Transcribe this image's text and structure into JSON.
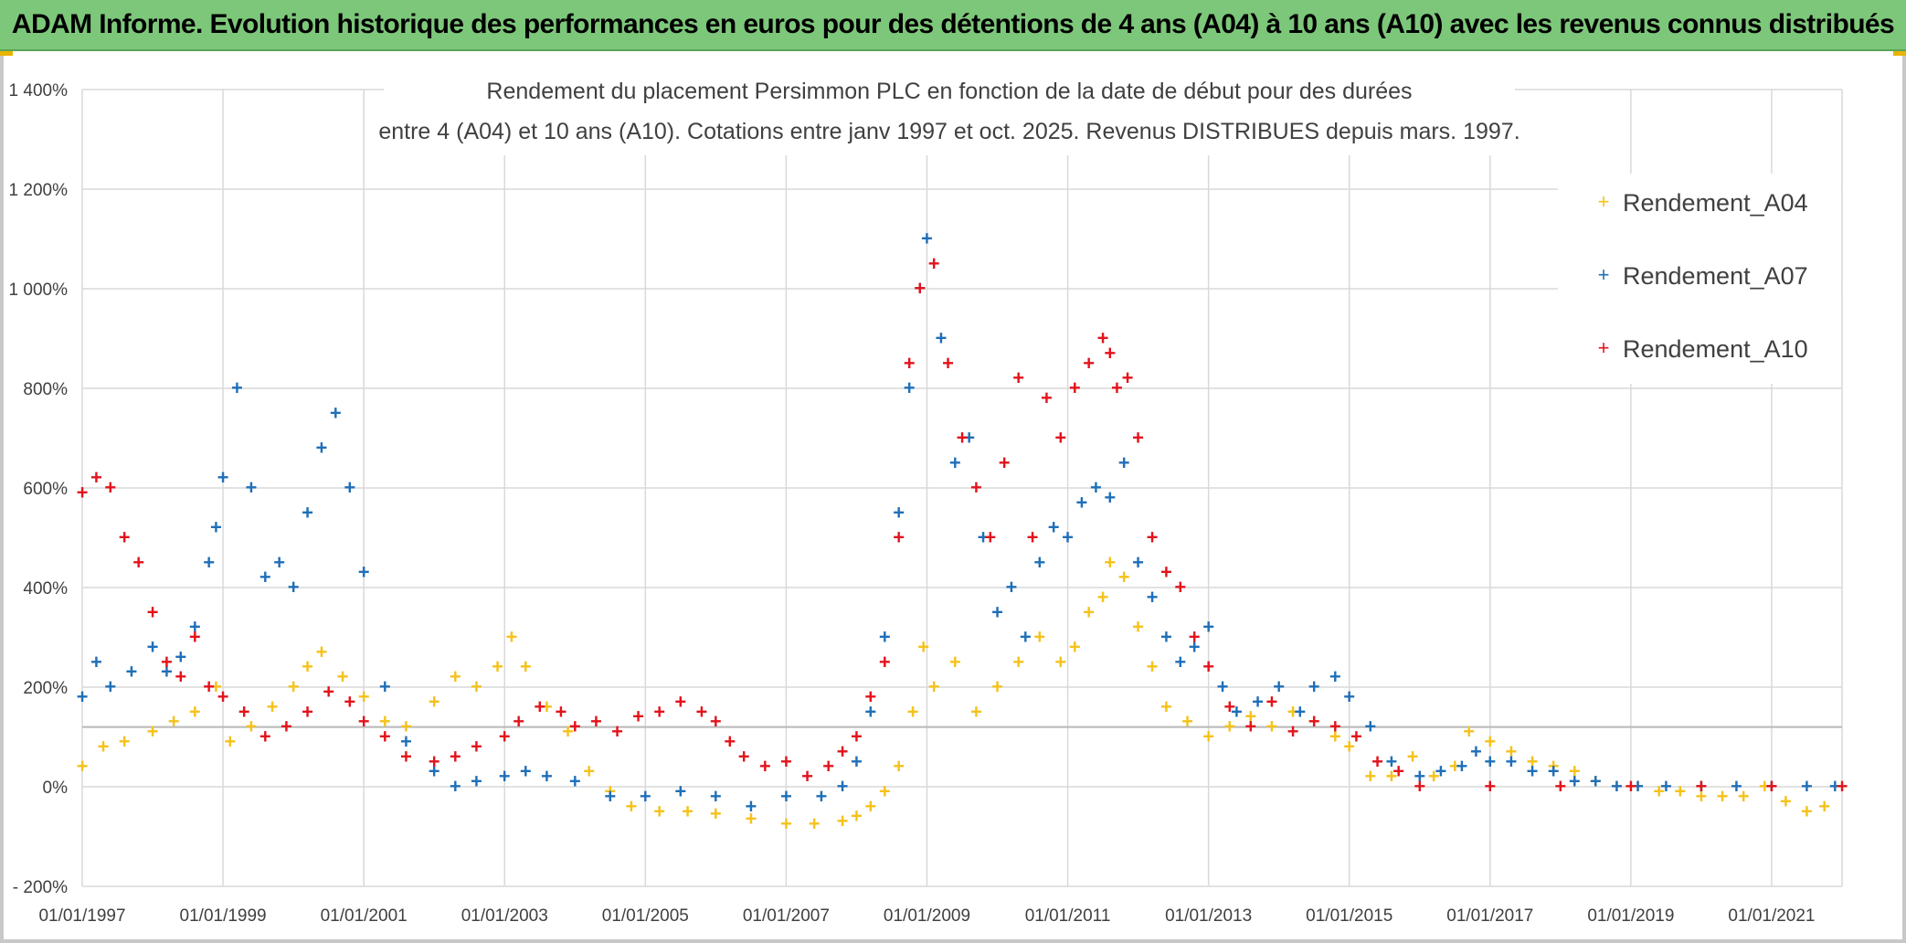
{
  "banner": {
    "title": "ADAM Informe. Evolution historique des performances en euros pour des détentions de 4 ans (A04) à 10 ans (A10) avec les revenus connus distribués"
  },
  "colors": {
    "banner_bg": "#7dc77a",
    "A04": "#f5c21b",
    "A07": "#1f6fb8",
    "A10": "#e3131b",
    "grid": "#d9d9d9"
  },
  "chart_data": {
    "type": "scatter",
    "title_line1": "Rendement du placement Persimmon PLC en fonction de la date de début pour des durées",
    "title_line2": "entre 4 (A04) et 10 ans (A10). Cotations entre janv 1997 et oct. 2025. Revenus DISTRIBUES depuis mars. 1997.",
    "xlabel": "",
    "ylabel": "",
    "x_unit": "year",
    "xlim": [
      1997.0,
      2022.0
    ],
    "ylim": [
      -200,
      1400
    ],
    "y_ticks": [
      -200,
      0,
      200,
      400,
      600,
      800,
      1000,
      1200,
      1400
    ],
    "y_tick_labels": [
      "- 200%",
      "0%",
      "200%",
      "400%",
      "600%",
      "800%",
      "1 000%",
      "1 200%",
      "1 400%"
    ],
    "x_ticks": [
      1997,
      1999,
      2001,
      2003,
      2005,
      2007,
      2009,
      2011,
      2013,
      2015,
      2017,
      2019,
      2021
    ],
    "x_tick_labels": [
      "01/01/1997",
      "01/01/1999",
      "01/01/2001",
      "01/01/2003",
      "01/01/2005",
      "01/01/2007",
      "01/01/2009",
      "01/01/2011",
      "01/01/2013",
      "01/01/2015",
      "01/01/2017",
      "01/01/2019",
      "01/01/2021"
    ],
    "reference_line_y": 120,
    "legend_position": "top-right",
    "marker": "+",
    "series": [
      {
        "name": "Rendement_A04",
        "color": "#f5c21b",
        "x": [
          1997.0,
          1997.3,
          1997.6,
          1998.0,
          1998.3,
          1998.6,
          1998.9,
          1999.1,
          1999.4,
          1999.7,
          2000.0,
          2000.2,
          2000.4,
          2000.7,
          2001.0,
          2001.3,
          2001.6,
          2002.0,
          2002.3,
          2002.6,
          2002.9,
          2003.1,
          2003.3,
          2003.6,
          2003.9,
          2004.2,
          2004.5,
          2004.8,
          2005.2,
          2005.6,
          2006.0,
          2006.5,
          2007.0,
          2007.4,
          2007.8,
          2008.0,
          2008.2,
          2008.4,
          2008.6,
          2008.8,
          2008.95,
          2009.1,
          2009.4,
          2009.7,
          2010.0,
          2010.3,
          2010.6,
          2010.9,
          2011.1,
          2011.3,
          2011.5,
          2011.6,
          2011.8,
          2012.0,
          2012.2,
          2012.4,
          2012.7,
          2013.0,
          2013.3,
          2013.6,
          2013.9,
          2014.2,
          2014.5,
          2014.8,
          2015.0,
          2015.3,
          2015.6,
          2015.9,
          2016.2,
          2016.5,
          2016.7,
          2017.0,
          2017.3,
          2017.6,
          2017.9,
          2018.2,
          2018.5,
          2018.8,
          2019.1,
          2019.4,
          2019.7,
          2020.0,
          2020.3,
          2020.6,
          2020.9,
          2021.2,
          2021.5,
          2021.75
        ],
        "y": [
          40,
          80,
          90,
          110,
          130,
          150,
          200,
          90,
          120,
          160,
          200,
          240,
          270,
          220,
          180,
          130,
          120,
          170,
          220,
          200,
          240,
          300,
          240,
          160,
          110,
          30,
          -10,
          -40,
          -50,
          -50,
          -55,
          -65,
          -75,
          -75,
          -70,
          -60,
          -40,
          -10,
          40,
          150,
          280,
          200,
          250,
          150,
          200,
          250,
          300,
          250,
          280,
          350,
          380,
          450,
          420,
          320,
          240,
          160,
          130,
          100,
          120,
          140,
          120,
          150,
          130,
          100,
          80,
          20,
          20,
          60,
          20,
          40,
          110,
          90,
          70,
          50,
          40,
          30,
          10,
          0,
          0,
          -10,
          -10,
          -20,
          -20,
          -20,
          0,
          -30,
          -50,
          -40
        ]
      },
      {
        "name": "Rendement_A07",
        "color": "#1f6fb8",
        "x": [
          1997.0,
          1997.2,
          1997.4,
          1997.7,
          1998.0,
          1998.2,
          1998.4,
          1998.6,
          1998.8,
          1998.9,
          1999.0,
          1999.2,
          1999.4,
          1999.6,
          1999.8,
          2000.0,
          2000.2,
          2000.4,
          2000.6,
          2000.8,
          2001.0,
          2001.3,
          2001.6,
          2002.0,
          2002.3,
          2002.6,
          2003.0,
          2003.3,
          2003.6,
          2004.0,
          2004.5,
          2005.0,
          2005.5,
          2006.0,
          2006.5,
          2007.0,
          2007.5,
          2007.8,
          2008.0,
          2008.2,
          2008.4,
          2008.6,
          2008.75,
          2008.9,
          2009.0,
          2009.2,
          2009.4,
          2009.6,
          2009.8,
          2010.0,
          2010.2,
          2010.4,
          2010.6,
          2010.8,
          2011.0,
          2011.2,
          2011.4,
          2011.6,
          2011.8,
          2012.0,
          2012.2,
          2012.4,
          2012.6,
          2012.8,
          2013.0,
          2013.2,
          2013.4,
          2013.7,
          2014.0,
          2014.3,
          2014.5,
          2014.8,
          2015.0,
          2015.3,
          2015.6,
          2016.0,
          2016.3,
          2016.6,
          2016.8,
          2017.0,
          2017.3,
          2017.6,
          2017.9,
          2018.2,
          2018.5,
          2018.8,
          2019.1,
          2019.5,
          2020.0,
          2020.5,
          2021.0,
          2021.5,
          2021.9
        ],
        "y": [
          180,
          250,
          200,
          230,
          280,
          230,
          260,
          320,
          450,
          520,
          620,
          800,
          600,
          420,
          450,
          400,
          550,
          680,
          750,
          600,
          430,
          200,
          90,
          30,
          0,
          10,
          20,
          30,
          20,
          10,
          -20,
          -20,
          -10,
          -20,
          -40,
          -20,
          -20,
          0,
          50,
          150,
          300,
          550,
          800,
          1000,
          1100,
          900,
          650,
          700,
          500,
          350,
          400,
          300,
          450,
          520,
          500,
          570,
          600,
          580,
          650,
          450,
          380,
          300,
          250,
          280,
          320,
          200,
          150,
          170,
          200,
          150,
          200,
          220,
          180,
          120,
          50,
          20,
          30,
          40,
          70,
          50,
          50,
          30,
          30,
          10,
          10,
          0,
          0,
          0,
          0,
          0,
          0,
          0,
          0
        ]
      },
      {
        "name": "Rendement_A10",
        "color": "#e3131b",
        "x": [
          1997.0,
          1997.2,
          1997.4,
          1997.6,
          1997.8,
          1998.0,
          1998.2,
          1998.4,
          1998.6,
          1998.8,
          1999.0,
          1999.3,
          1999.6,
          1999.9,
          2000.2,
          2000.5,
          2000.8,
          2001.0,
          2001.3,
          2001.6,
          2002.0,
          2002.3,
          2002.6,
          2003.0,
          2003.2,
          2003.5,
          2003.8,
          2004.0,
          2004.3,
          2004.6,
          2004.9,
          2005.2,
          2005.5,
          2005.8,
          2006.0,
          2006.2,
          2006.4,
          2006.7,
          2007.0,
          2007.3,
          2007.6,
          2007.8,
          2008.0,
          2008.2,
          2008.4,
          2008.6,
          2008.75,
          2008.9,
          2009.1,
          2009.3,
          2009.5,
          2009.7,
          2009.9,
          2010.1,
          2010.3,
          2010.5,
          2010.7,
          2010.9,
          2011.1,
          2011.3,
          2011.5,
          2011.6,
          2011.7,
          2011.85,
          2012.0,
          2012.2,
          2012.4,
          2012.6,
          2012.8,
          2013.0,
          2013.3,
          2013.6,
          2013.9,
          2014.2,
          2014.5,
          2014.8,
          2015.1,
          2015.4,
          2015.7,
          2016.0,
          2017.0,
          2018.0,
          2019.0,
          2020.0,
          2021.0,
          2022.0
        ],
        "y": [
          590,
          620,
          600,
          500,
          450,
          350,
          250,
          220,
          300,
          200,
          180,
          150,
          100,
          120,
          150,
          190,
          170,
          130,
          100,
          60,
          50,
          60,
          80,
          100,
          130,
          160,
          150,
          120,
          130,
          110,
          140,
          150,
          170,
          150,
          130,
          90,
          60,
          40,
          50,
          20,
          40,
          70,
          100,
          180,
          250,
          500,
          850,
          1000,
          1050,
          850,
          700,
          600,
          500,
          650,
          820,
          500,
          780,
          700,
          800,
          850,
          900,
          870,
          800,
          820,
          700,
          500,
          430,
          400,
          300,
          240,
          160,
          120,
          170,
          110,
          130,
          120,
          100,
          50,
          30,
          0,
          0,
          0,
          0,
          0,
          0,
          0
        ]
      }
    ]
  }
}
